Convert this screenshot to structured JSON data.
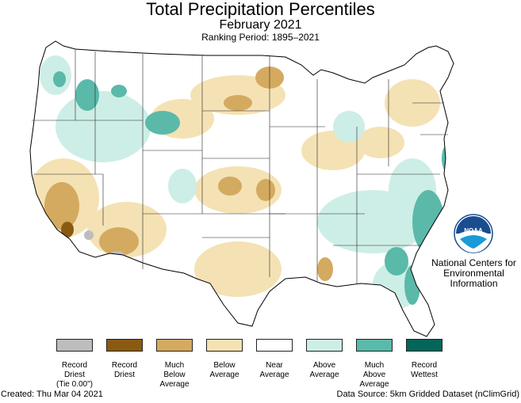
{
  "title": "Total Precipitation Percentiles",
  "subtitle": "February 2021",
  "ranking_period": "Ranking Period: 1895–2021",
  "organization": [
    "National Centers for",
    "Environmental",
    "Information"
  ],
  "logo_text": "NOAA",
  "colors": {
    "record_driest_tie": "#bdbdbd",
    "record_driest": "#8a5a12",
    "much_below": "#d4aa60",
    "below": "#f4e2b4",
    "near": "#ffffff",
    "above": "#cdeee6",
    "much_above": "#5ab9a9",
    "record_wettest": "#04665a"
  },
  "legend": [
    {
      "lines": [
        "Record",
        "Driest",
        "(Tie 0.00\")"
      ],
      "color": "#bdbdbd"
    },
    {
      "lines": [
        "Record",
        "Driest"
      ],
      "color": "#8a5a12"
    },
    {
      "lines": [
        "Much",
        "Below",
        "Average"
      ],
      "color": "#d4aa60"
    },
    {
      "lines": [
        "Below",
        "Average"
      ],
      "color": "#f4e2b4"
    },
    {
      "lines": [
        "Near",
        "Average"
      ],
      "color": "#ffffff"
    },
    {
      "lines": [
        "Above",
        "Average"
      ],
      "color": "#cdeee6"
    },
    {
      "lines": [
        "Much",
        "Above",
        "Average"
      ],
      "color": "#5ab9a9"
    },
    {
      "lines": [
        "Record",
        "Wettest"
      ],
      "color": "#04665a"
    }
  ],
  "created": "Created: Thu Mar 04 2021",
  "data_source": "Data Source: 5km Gridded Dataset (nClimGrid)"
}
